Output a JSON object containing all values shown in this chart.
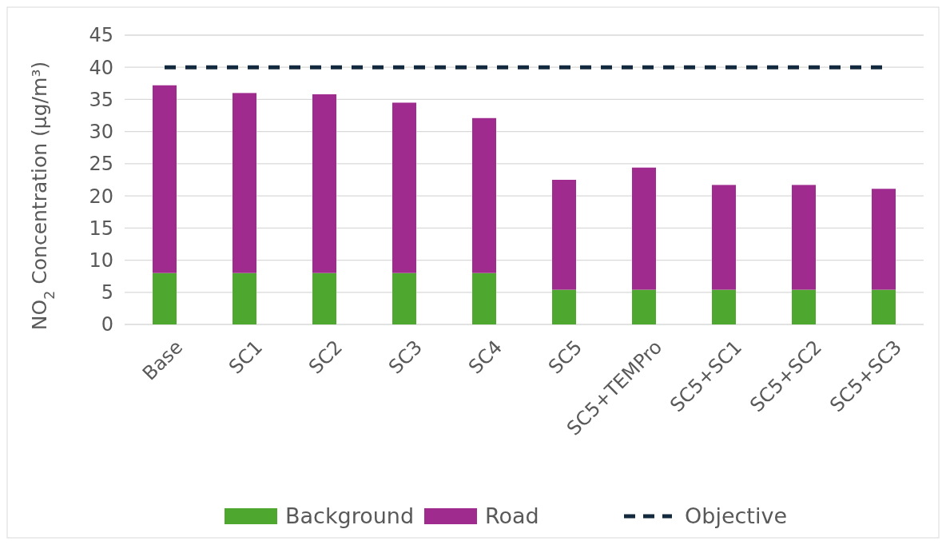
{
  "chart_data": {
    "type": "bar",
    "stacked": true,
    "ylabel": "NO$_{2}$ Concentration (µg/m³)",
    "categories": [
      "Base",
      "SC1",
      "SC2",
      "SC3",
      "SC4",
      "SC5",
      "SC5+TEMPro",
      "SC5+SC1",
      "SC5+SC2",
      "SC5+SC3"
    ],
    "series": [
      {
        "name": "Background",
        "color": "#4ea72e",
        "values": [
          8,
          8,
          8,
          8,
          8,
          5.4,
          5.4,
          5.4,
          5.4,
          5.4
        ]
      },
      {
        "name": "Road",
        "color": "#a02b8f",
        "values": [
          29.2,
          28,
          27.8,
          26.5,
          24.1,
          17.1,
          19,
          16.3,
          16.3,
          15.7
        ]
      },
      {
        "name": "Objective",
        "type": "line",
        "color": "#13293d",
        "line_style": "dashed",
        "values": [
          40,
          40,
          40,
          40,
          40,
          40,
          40,
          40,
          40,
          40
        ]
      }
    ],
    "ylim": [
      0,
      45
    ],
    "yticks": [
      0,
      5,
      10,
      15,
      20,
      25,
      30,
      35,
      40,
      45
    ],
    "grid": "y",
    "legend": "bottom"
  }
}
